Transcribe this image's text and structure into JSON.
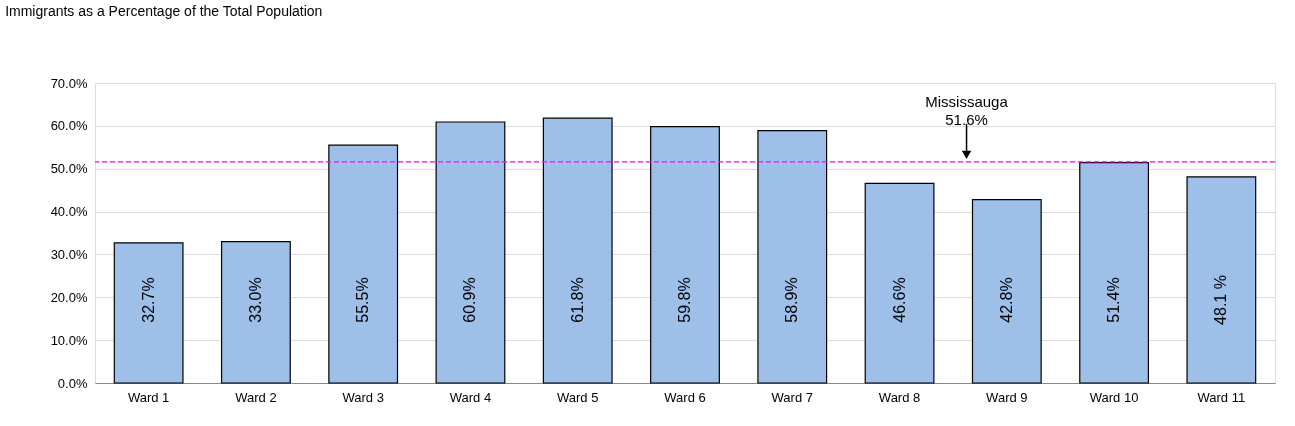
{
  "chart_data": {
    "type": "bar",
    "title": "Immigrants as a Percentage of the Total Population",
    "categories": [
      "Ward 1",
      "Ward 2",
      "Ward 3",
      "Ward 4",
      "Ward 5",
      "Ward 6",
      "Ward 7",
      "Ward 8",
      "Ward 9",
      "Ward 10",
      "Ward 11"
    ],
    "values": [
      32.7,
      33.0,
      55.5,
      60.9,
      61.8,
      59.8,
      58.9,
      46.6,
      42.8,
      51.4,
      48.1
    ],
    "value_labels": [
      "32.7%",
      "33.0%",
      "55.5%",
      "60.9%",
      "61.8%",
      "59.8%",
      "58.9%",
      "46.6%",
      "42.8%",
      "51.4%",
      "48.1 %"
    ],
    "color": "#9dbfe8",
    "ylim": [
      0,
      70
    ],
    "yticks": [
      {
        "value": 0,
        "label": "0.0%"
      },
      {
        "value": 10,
        "label": "10.0%"
      },
      {
        "value": 20,
        "label": "20.0%"
      },
      {
        "value": 30,
        "label": "30.0%"
      },
      {
        "value": 40,
        "label": "40.0%"
      },
      {
        "value": 50,
        "label": "50.0%"
      },
      {
        "value": 60,
        "label": "60.0%"
      },
      {
        "value": 70,
        "label": "70.0%"
      }
    ],
    "grid": "y",
    "ref_lines": [
      {
        "axis": "y",
        "value": 51.6,
        "label": "Mississauga\n51.6%",
        "color": "#ff00ff",
        "line_style": "dashed"
      }
    ]
  }
}
